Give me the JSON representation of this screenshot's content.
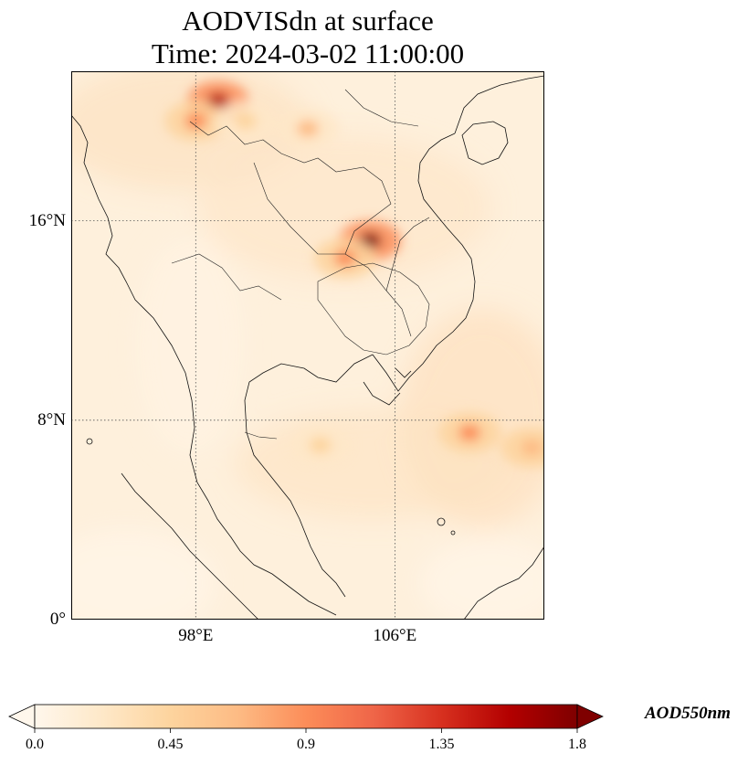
{
  "title_line1": "AODVISdn at surface",
  "title_line2": "Time: 2024-03-02 11:00:00",
  "map": {
    "projection": "plate-carree",
    "lon_range": [
      93,
      112
    ],
    "lat_range": [
      0,
      22
    ],
    "lat_ticks": [
      {
        "value": 16,
        "label": "16°N"
      },
      {
        "value": 8,
        "label": "8°N"
      },
      {
        "value": 0,
        "label": "0°"
      }
    ],
    "lon_ticks": [
      {
        "value": 98,
        "label": "98°E"
      },
      {
        "value": 106,
        "label": "106°E"
      }
    ],
    "gridlines": "dotted",
    "coastlines": true,
    "borders": true
  },
  "colorbar": {
    "label": "AOD550nm",
    "cmap": "OrRd",
    "range": [
      0.0,
      1.8
    ],
    "extend": "both",
    "ticks": [
      "0.0",
      "0.45",
      "0.9",
      "1.35",
      "1.8"
    ],
    "colors": [
      "#fff7ec",
      "#fee8c8",
      "#fdd49e",
      "#fdbb84",
      "#fc8d59",
      "#ef6548",
      "#d7301f",
      "#b30000",
      "#7f0000"
    ]
  },
  "chart_data": {
    "type": "heatmap",
    "title": "AODVISdn at surface\nTime: 2024-03-02 11:00:00",
    "variable": "AOD550nm",
    "value_range": [
      0.0,
      1.8
    ],
    "hotspots": [
      {
        "lon": 98.9,
        "lat": 20.8,
        "value": 1.6
      },
      {
        "lon": 98.0,
        "lat": 20.0,
        "value": 0.9
      },
      {
        "lon": 105.0,
        "lat": 15.2,
        "value": 1.75
      },
      {
        "lon": 104.0,
        "lat": 14.5,
        "value": 0.9
      },
      {
        "lon": 102.5,
        "lat": 19.7,
        "value": 0.6
      },
      {
        "lon": 100.0,
        "lat": 20.0,
        "value": 0.55
      },
      {
        "lon": 109.0,
        "lat": 7.5,
        "value": 0.85
      },
      {
        "lon": 111.5,
        "lat": 6.9,
        "value": 0.7
      },
      {
        "lon": 103.0,
        "lat": 7.0,
        "value": 0.5
      }
    ],
    "background_value": 0.15
  }
}
